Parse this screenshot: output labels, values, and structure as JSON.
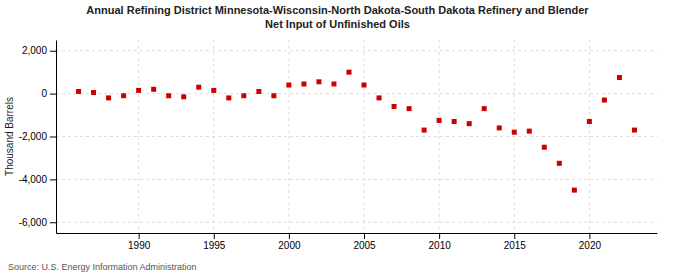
{
  "chart_data": {
    "type": "scatter",
    "title": "Annual Refining District Minnesota-Wisconsin-North Dakota-South Dakota Refinery and Blender",
    "subtitle": "Net Input of Unfinished Oils",
    "y_label": "Thousand Barrels",
    "annotations": [
      "Source: U.S. Energy Information Administration"
    ],
    "x": [
      1986,
      1987,
      1988,
      1989,
      1990,
      1991,
      1992,
      1993,
      1994,
      1995,
      1996,
      1997,
      1998,
      1999,
      2000,
      2001,
      2002,
      2003,
      2004,
      2005,
      2006,
      2007,
      2008,
      2009,
      2010,
      2011,
      2012,
      2013,
      2014,
      2015,
      2016,
      2017,
      2018,
      2019,
      2020,
      2021,
      2022,
      2023
    ],
    "values": [
      100,
      50,
      -200,
      -100,
      150,
      200,
      -100,
      -150,
      300,
      150,
      -200,
      -100,
      100,
      -100,
      400,
      450,
      550,
      450,
      1000,
      400,
      -200,
      -600,
      -700,
      -1700,
      -1250,
      -1300,
      -1400,
      -700,
      -1600,
      -1800,
      -1750,
      -2500,
      -3250,
      -4500,
      -1300,
      -300,
      750,
      -1700
    ],
    "color": "#cc0000",
    "marker": "square",
    "xlim": [
      1984.5,
      2024.5
    ],
    "xticks": [
      1990,
      1995,
      2000,
      2005,
      2010,
      2015,
      2020
    ],
    "ylim": [
      -6500,
      2500
    ],
    "yticks": [
      {
        "value": -6000,
        "label": "-6,000"
      },
      {
        "value": -4000,
        "label": "-4,000"
      },
      {
        "value": -2000,
        "label": "-2,000"
      },
      0,
      {
        "value": 2000,
        "label": "2,000"
      }
    ],
    "grid": true
  }
}
